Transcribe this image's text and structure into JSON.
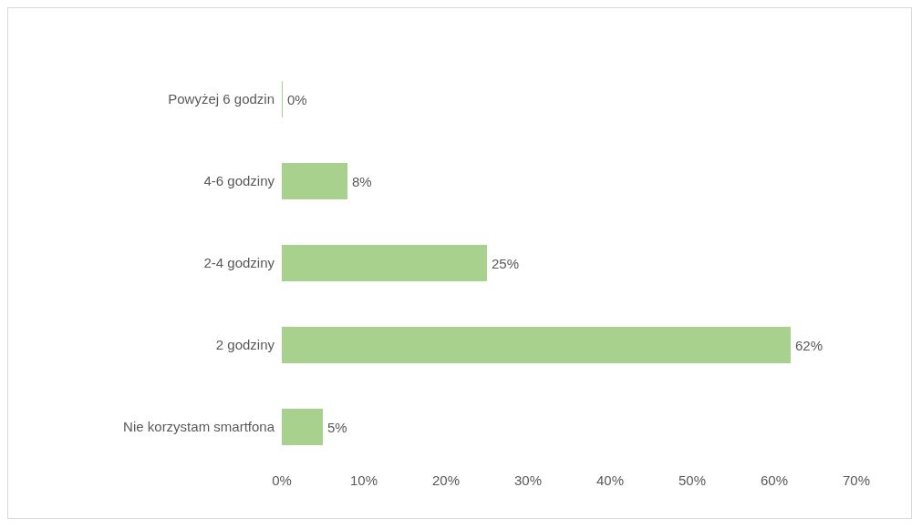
{
  "chart_data": {
    "type": "bar",
    "orientation": "horizontal",
    "categories": [
      "Powyżej 6 godzin",
      "4-6 godziny",
      "2-4 godziny",
      "2 godziny",
      "Nie korzystam smartfona"
    ],
    "values": [
      0,
      8,
      25,
      62,
      5
    ],
    "value_labels": [
      "0%",
      "8%",
      "25%",
      "62%",
      "5%"
    ],
    "color": "#a9d18e",
    "xlim": [
      0,
      70
    ],
    "xticks": [
      {
        "value": 0,
        "label": "0%"
      },
      {
        "value": 10,
        "label": "10%"
      },
      {
        "value": 20,
        "label": "20%"
      },
      {
        "value": 30,
        "label": "30%"
      },
      {
        "value": 40,
        "label": "40%"
      },
      {
        "value": 50,
        "label": "50%"
      },
      {
        "value": 60,
        "label": "60%"
      },
      {
        "value": 70,
        "label": "70%"
      }
    ],
    "grid": false,
    "legend": false
  }
}
